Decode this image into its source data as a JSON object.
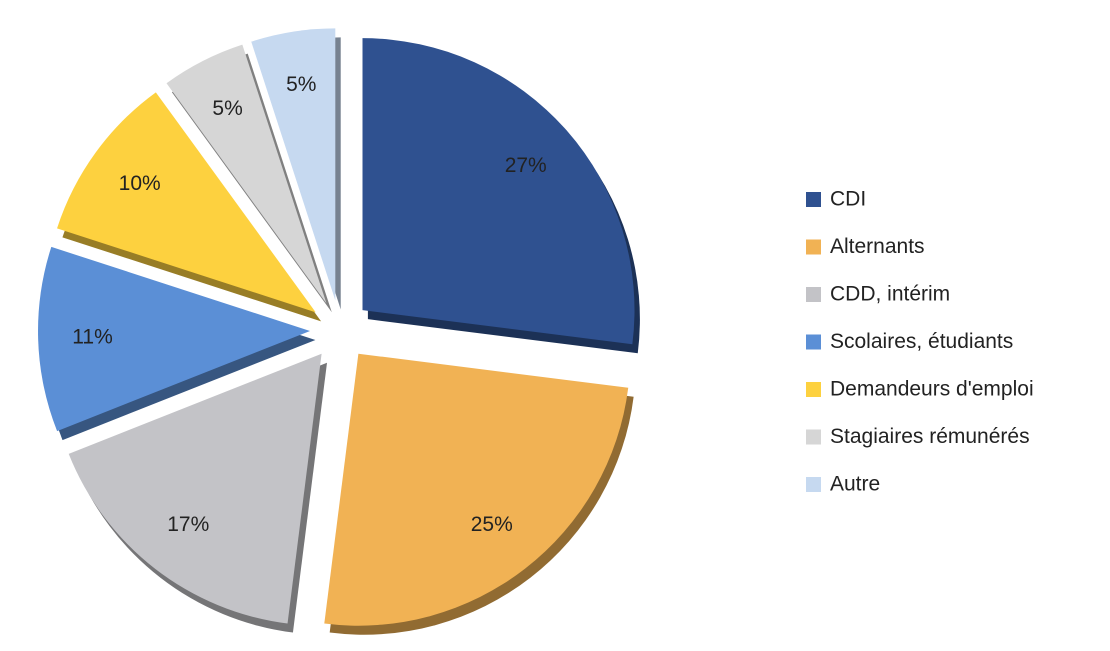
{
  "chart_data": {
    "type": "pie",
    "categories": [
      "CDI",
      "Alternants",
      "CDD, intérim",
      "Scolaires, étudiants",
      "Demandeurs d'emploi",
      "Stagiaires rémunérés",
      "Autre"
    ],
    "values": [
      27,
      25,
      17,
      11,
      10,
      5,
      5
    ],
    "value_labels": [
      "27%",
      "25%",
      "17%",
      "11%",
      "10%",
      "5%",
      "5%"
    ],
    "colors": [
      "#2f5190",
      "#f1b254",
      "#c3c3c7",
      "#5b8fd6",
      "#fdd13f",
      "#d6d6d6",
      "#c6d9f0"
    ],
    "legend": "right"
  }
}
